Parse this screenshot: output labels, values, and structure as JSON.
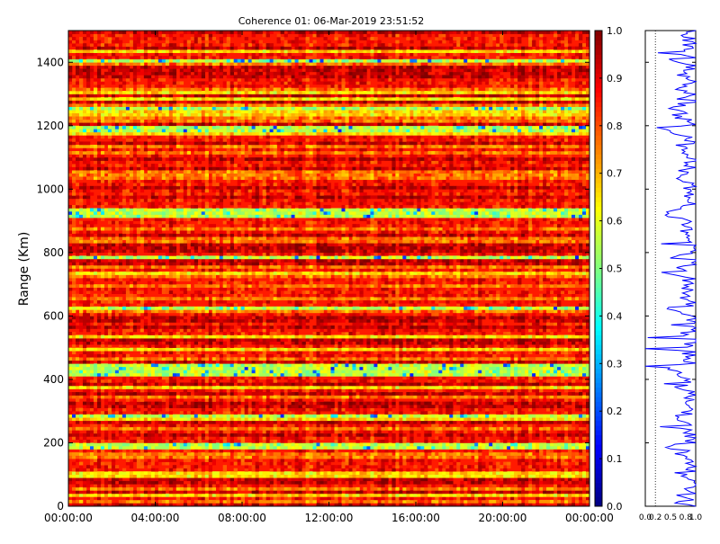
{
  "chart_data": [
    {
      "type": "heatmap",
      "title": "Coherence 01: 06-Mar-2019 23:51:52",
      "xlabel": "",
      "ylabel": "Range (Km)",
      "xlim": [
        "00:00:00",
        "24:00:00"
      ],
      "ylim": [
        0,
        1500
      ],
      "x_ticks": [
        "00:00:00",
        "04:00:00",
        "08:00:00",
        "12:00:00",
        "16:00:00",
        "20:00:00",
        "00:00:00"
      ],
      "y_ticks": [
        "0",
        "200",
        "400",
        "600",
        "800",
        "1000",
        "1200",
        "1400"
      ],
      "colormap": "jet",
      "colorbar": {
        "range": [
          0.0,
          1.0
        ],
        "ticks": [
          "0.0",
          "0.1",
          "0.2",
          "0.3",
          "0.4",
          "0.5",
          "0.6",
          "0.7",
          "0.8",
          "0.9",
          "1.0"
        ]
      },
      "z_range": [
        0.0,
        1.0
      ],
      "typical_value": 0.85,
      "notes": [
        "Mostly 0.7–0.95 across all times",
        "Horizontal low-coherence bands near ~200, ~400-440, ~930, ~1190 and ~1250 km"
      ]
    },
    {
      "type": "line",
      "xlim": [
        0.0,
        1.0
      ],
      "ylim": [
        0,
        1500
      ],
      "x_ticks": [
        "0.0",
        "0.2",
        "0.5",
        "0.8",
        "1.0"
      ],
      "line_color": "#0000ff"
    }
  ]
}
